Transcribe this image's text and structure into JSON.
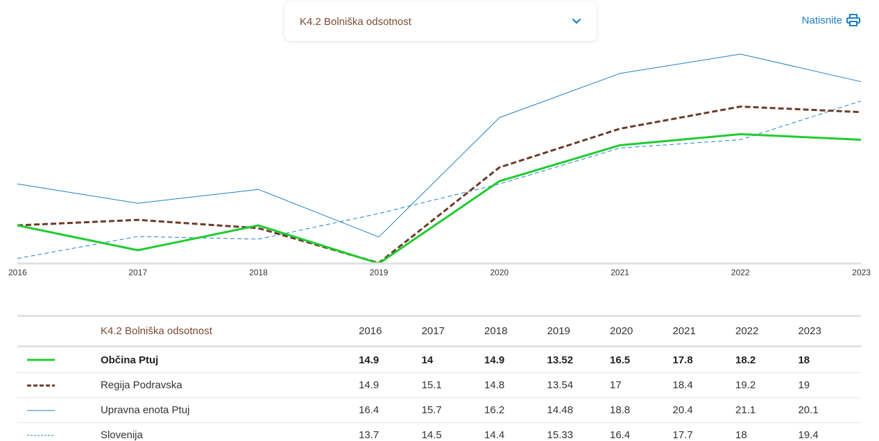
{
  "selector": {
    "label": "K4.2 Bolniška odsotnost",
    "icon": "chevron-down-icon"
  },
  "print": {
    "label": "Natisnite",
    "icon": "printer-icon"
  },
  "colors": {
    "accent": "#1e7fc4",
    "header_text": "#7a4a34",
    "obcina": "#1fcc2f",
    "regija": "#6b3a2a",
    "upravna": "#1e7fc4",
    "slovenija": "#1e7fc4"
  },
  "chart_data": {
    "type": "line",
    "x": [
      "2016",
      "2017",
      "2018",
      "2019",
      "2020",
      "2021",
      "2022",
      "2023"
    ],
    "ylim": [
      13.52,
      21.1
    ],
    "grid": false,
    "series": [
      {
        "name": "Občina Ptuj",
        "values": [
          14.9,
          14,
          14.9,
          13.52,
          16.5,
          17.8,
          18.2,
          18
        ],
        "color": "#1fcc2f",
        "style": "solid-thick"
      },
      {
        "name": "Regija Podravska",
        "values": [
          14.9,
          15.1,
          14.8,
          13.54,
          17,
          18.4,
          19.2,
          19
        ],
        "color": "#6b3a2a",
        "style": "dashed-thick"
      },
      {
        "name": "Upravna enota Ptuj",
        "values": [
          16.4,
          15.7,
          16.2,
          14.48,
          18.8,
          20.4,
          21.1,
          20.1
        ],
        "color": "#1e7fc4",
        "style": "solid-thin"
      },
      {
        "name": "Slovenija",
        "values": [
          13.7,
          14.5,
          14.4,
          15.33,
          16.4,
          17.7,
          18,
          19.4
        ],
        "color": "#1e7fc4",
        "style": "dashed-thin"
      }
    ]
  },
  "table": {
    "header_label": "K4.2 Bolniška odsotnost",
    "years": [
      "2016",
      "2017",
      "2018",
      "2019",
      "2020",
      "2021",
      "2022",
      "2023"
    ],
    "rows": [
      {
        "name": "Občina Ptuj",
        "values": [
          "14.9",
          "14",
          "14.9",
          "13.52",
          "16.5",
          "17.8",
          "18.2",
          "18"
        ]
      },
      {
        "name": "Regija Podravska",
        "values": [
          "14.9",
          "15.1",
          "14.8",
          "13.54",
          "17",
          "18.4",
          "19.2",
          "19"
        ]
      },
      {
        "name": "Upravna enota Ptuj",
        "values": [
          "16.4",
          "15.7",
          "16.2",
          "14.48",
          "18.8",
          "20.4",
          "21.1",
          "20.1"
        ]
      },
      {
        "name": "Slovenija",
        "values": [
          "13.7",
          "14.5",
          "14.4",
          "15.33",
          "16.4",
          "17.7",
          "18",
          "19.4"
        ]
      }
    ]
  }
}
